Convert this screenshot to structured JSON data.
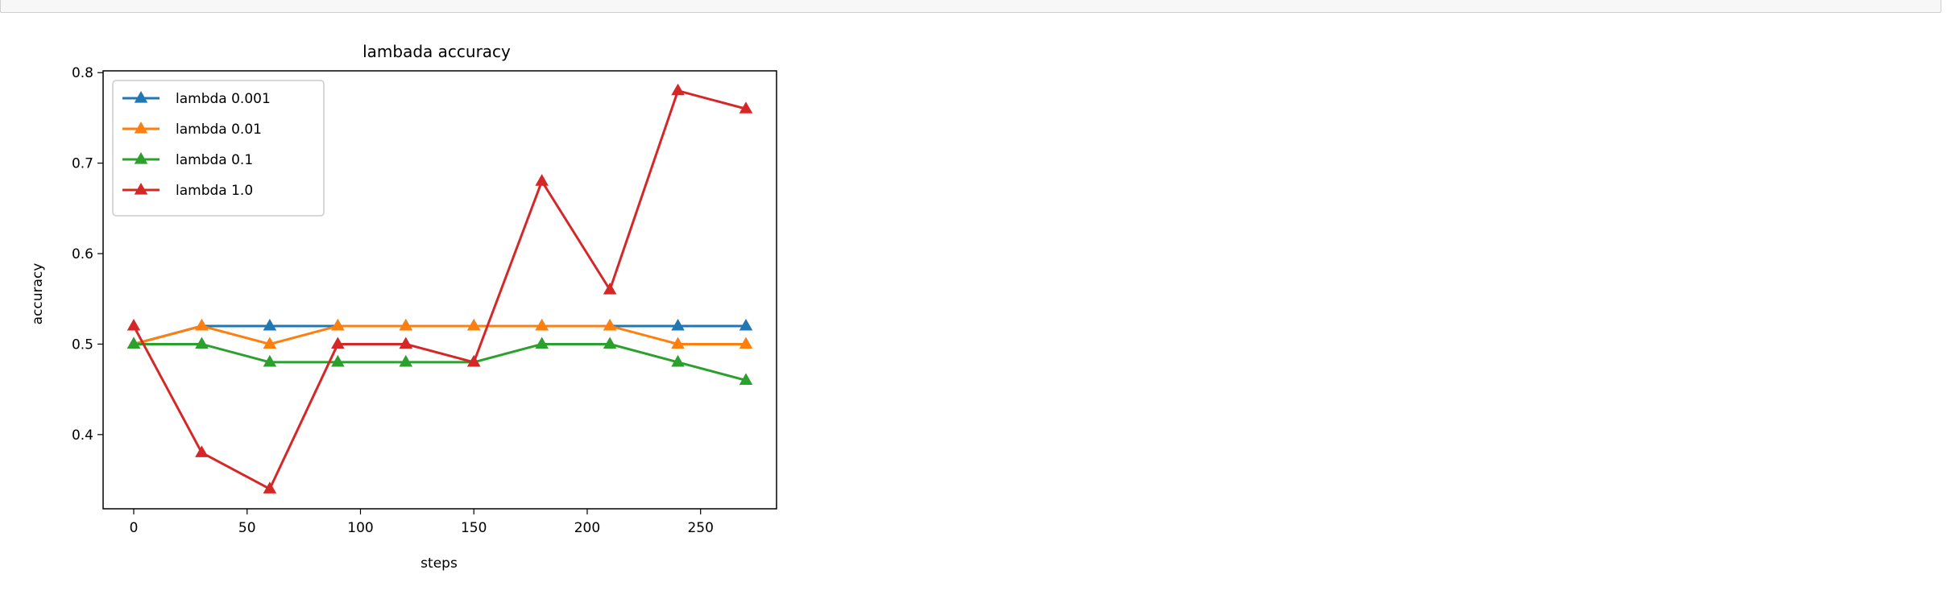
{
  "notebook": {
    "output_area": "plot output"
  },
  "chart_data": {
    "type": "line",
    "title": "lambada accuracy",
    "xlabel": "steps",
    "ylabel": "accuracy",
    "xlim": [
      -13.5,
      283.5
    ],
    "ylim": [
      0.318,
      0.802
    ],
    "xticks": [
      0,
      50,
      100,
      150,
      200,
      250
    ],
    "yticks": [
      0.4,
      0.5,
      0.6,
      0.7,
      0.8
    ],
    "xtick_labels": [
      "0",
      "50",
      "100",
      "150",
      "200",
      "250"
    ],
    "ytick_labels": [
      "0.4",
      "0.5",
      "0.6",
      "0.7",
      "0.8"
    ],
    "grid": false,
    "legend_position": "upper left",
    "marker": "triangle-up",
    "x": [
      0,
      30,
      60,
      90,
      120,
      150,
      180,
      210,
      240,
      270
    ],
    "series": [
      {
        "name": "lambda 0.001",
        "color": "#1f77b4",
        "values": [
          0.5,
          0.52,
          0.52,
          0.52,
          0.52,
          0.52,
          0.52,
          0.52,
          0.52,
          0.52
        ]
      },
      {
        "name": "lambda 0.01",
        "color": "#ff7f0e",
        "values": [
          0.5,
          0.52,
          0.5,
          0.52,
          0.52,
          0.52,
          0.52,
          0.52,
          0.5,
          0.5
        ]
      },
      {
        "name": "lambda 0.1",
        "color": "#2ca02c",
        "values": [
          0.5,
          0.5,
          0.48,
          0.48,
          0.48,
          0.48,
          0.5,
          0.5,
          0.48,
          0.46
        ]
      },
      {
        "name": "lambda 1.0",
        "color": "#d62728",
        "values": [
          0.52,
          0.38,
          0.34,
          0.5,
          0.5,
          0.48,
          0.68,
          0.56,
          0.78,
          0.76
        ]
      }
    ]
  }
}
